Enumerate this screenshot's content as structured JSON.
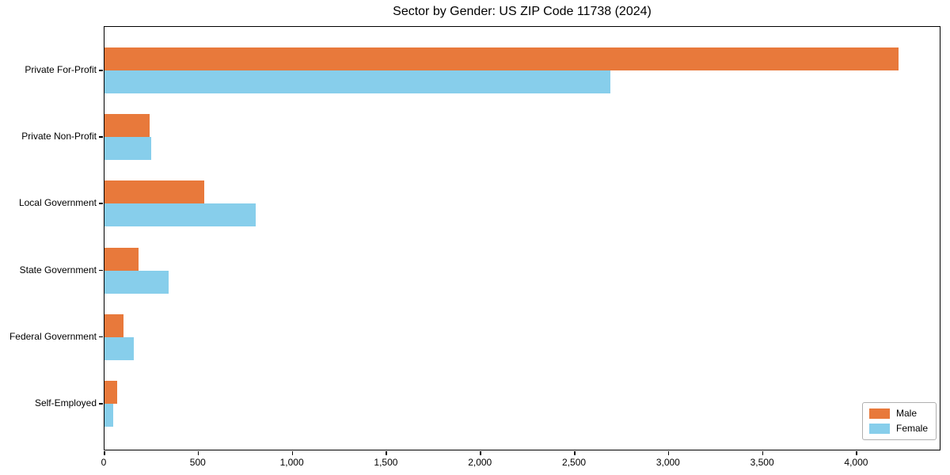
{
  "chart_data": {
    "type": "bar",
    "orientation": "horizontal",
    "title": "Sector by Gender: US ZIP Code 11738 (2024)",
    "categories": [
      "Private For-Profit",
      "Private Non-Profit",
      "Local Government",
      "State Government",
      "Federal Government",
      "Self-Employed"
    ],
    "series": [
      {
        "name": "Male",
        "color": "#e8793b",
        "values": [
          4220,
          240,
          530,
          180,
          100,
          68
        ]
      },
      {
        "name": "Female",
        "color": "#87ceeb",
        "values": [
          2690,
          250,
          805,
          340,
          155,
          45
        ]
      }
    ],
    "xlabel": "",
    "ylabel": "",
    "xlim": [
      0,
      4440
    ],
    "x_ticks": [
      0,
      500,
      1000,
      1500,
      2000,
      2500,
      3000,
      3500,
      4000
    ],
    "x_tick_labels": [
      "0",
      "500",
      "1,000",
      "1,500",
      "2,000",
      "2,500",
      "3,000",
      "3,500",
      "4,000"
    ],
    "legend_position": "lower right",
    "grid": false,
    "frame_color": "#000000",
    "background_color": "#ffffff"
  }
}
